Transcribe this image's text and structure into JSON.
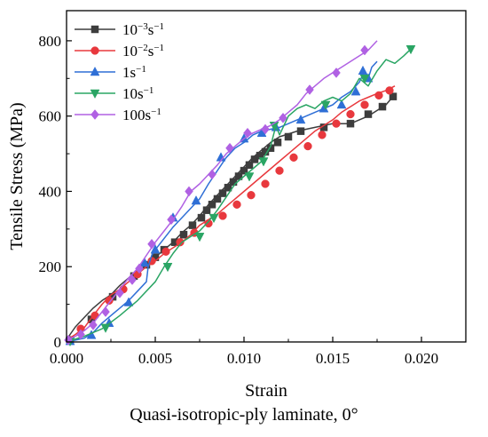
{
  "chart_data": {
    "type": "line",
    "xlabel": "Strain",
    "ylabel": "Tensile Stress (MPa)",
    "xlim": [
      0,
      0.0225
    ],
    "ylim": [
      0,
      880
    ],
    "xticks": [
      "0.000",
      "0.005",
      "0.010",
      "0.015",
      "0.020"
    ],
    "xtick_values": [
      0,
      0.005,
      0.01,
      0.015,
      0.02
    ],
    "yticks": [
      "0",
      "200",
      "400",
      "600",
      "800"
    ],
    "ytick_values": [
      0,
      200,
      400,
      600,
      800
    ],
    "grid": false,
    "legend_position": "top-left",
    "series": [
      {
        "name_base": "10",
        "name_sup": "−3",
        "name_unit": "s",
        "name_unit_sup": "−1",
        "color": "#3d3d3d",
        "marker": "square",
        "x": [
          0.0,
          0.0002,
          0.0005,
          0.001,
          0.0015,
          0.002,
          0.0025,
          0.003,
          0.0035,
          0.004,
          0.0045,
          0.005,
          0.0055,
          0.006,
          0.0065,
          0.007,
          0.0075,
          0.008,
          0.0085,
          0.009,
          0.0095,
          0.01,
          0.0105,
          0.011,
          0.0115,
          0.012,
          0.013,
          0.014,
          0.015,
          0.016,
          0.017,
          0.018,
          0.0184
        ],
        "y": [
          5,
          20,
          40,
          65,
          90,
          110,
          125,
          150,
          170,
          185,
          205,
          225,
          245,
          265,
          290,
          310,
          335,
          365,
          390,
          415,
          440,
          465,
          490,
          510,
          530,
          545,
          560,
          570,
          580,
          580,
          600,
          630,
          652
        ],
        "marker_x": [
          0.0002,
          0.0014,
          0.0026,
          0.0038,
          0.0045,
          0.005,
          0.0055,
          0.0061,
          0.0066,
          0.0071,
          0.0076,
          0.0079,
          0.0082,
          0.0085,
          0.0088,
          0.0091,
          0.0094,
          0.0097,
          0.01,
          0.0103,
          0.0106,
          0.0109,
          0.0112,
          0.0115,
          0.0119,
          0.0125,
          0.0132,
          0.0145,
          0.016,
          0.017,
          0.0178,
          0.0184
        ],
        "marker_y": [
          5,
          60,
          120,
          175,
          205,
          225,
          245,
          265,
          285,
          310,
          330,
          350,
          365,
          380,
          395,
          410,
          425,
          440,
          455,
          470,
          485,
          495,
          505,
          515,
          530,
          545,
          560,
          570,
          580,
          605,
          625,
          652
        ]
      },
      {
        "name_base": "10",
        "name_sup": "−2",
        "name_unit": "s",
        "name_unit_sup": "−1",
        "color": "#e8383d",
        "marker": "circle",
        "x": [
          0.0,
          0.0005,
          0.001,
          0.0015,
          0.002,
          0.0025,
          0.003,
          0.0035,
          0.004,
          0.0045,
          0.005,
          0.0055,
          0.006,
          0.0065,
          0.007,
          0.0075,
          0.008,
          0.0085,
          0.009,
          0.0095,
          0.01,
          0.0105,
          0.011,
          0.0115,
          0.012,
          0.0125,
          0.013,
          0.0135,
          0.014,
          0.0145,
          0.015,
          0.0155,
          0.016,
          0.0165,
          0.017,
          0.0175,
          0.018,
          0.0185
        ],
        "y": [
          5,
          20,
          38,
          70,
          100,
          125,
          140,
          160,
          180,
          200,
          215,
          235,
          250,
          265,
          285,
          310,
          325,
          340,
          360,
          380,
          400,
          420,
          440,
          460,
          480,
          500,
          520,
          540,
          560,
          575,
          590,
          610,
          625,
          640,
          650,
          660,
          668,
          680
        ],
        "marker_x": [
          0.0002,
          0.0008,
          0.0016,
          0.0024,
          0.0032,
          0.004,
          0.0048,
          0.0056,
          0.0064,
          0.0072,
          0.008,
          0.0088,
          0.0096,
          0.0104,
          0.0112,
          0.012,
          0.0128,
          0.0136,
          0.0144,
          0.0152,
          0.016,
          0.0168,
          0.0176,
          0.0182
        ],
        "marker_y": [
          5,
          35,
          70,
          110,
          140,
          180,
          215,
          240,
          265,
          290,
          315,
          335,
          365,
          390,
          420,
          455,
          490,
          520,
          550,
          580,
          605,
          630,
          655,
          668
        ]
      },
      {
        "name_base": "1",
        "name_sup": "",
        "name_unit": "s",
        "name_unit_sup": "−1",
        "color": "#2f6fd6",
        "marker": "triangle-up",
        "x": [
          0.0,
          0.0005,
          0.001,
          0.0015,
          0.002,
          0.0025,
          0.003,
          0.0035,
          0.004,
          0.0045,
          0.0046,
          0.0048,
          0.005,
          0.0055,
          0.006,
          0.0065,
          0.007,
          0.0075,
          0.008,
          0.0085,
          0.009,
          0.0095,
          0.01,
          0.0105,
          0.011,
          0.0115,
          0.012,
          0.0125,
          0.013,
          0.0135,
          0.014,
          0.0145,
          0.015,
          0.0155,
          0.016,
          0.0165,
          0.0168,
          0.017,
          0.0172,
          0.0175
        ],
        "y": [
          0,
          5,
          10,
          25,
          50,
          70,
          90,
          110,
          135,
          160,
          200,
          230,
          245,
          275,
          305,
          330,
          355,
          380,
          420,
          455,
          490,
          515,
          530,
          550,
          560,
          565,
          570,
          580,
          590,
          600,
          610,
          620,
          630,
          650,
          665,
          690,
          720,
          700,
          730,
          745
        ],
        "marker_x": [
          0.0002,
          0.0014,
          0.0024,
          0.0035,
          0.0044,
          0.005,
          0.006,
          0.0073,
          0.0087,
          0.01,
          0.011,
          0.0118,
          0.0132,
          0.0145,
          0.0155,
          0.0163,
          0.0167,
          0.017
        ],
        "marker_y": [
          2,
          18,
          50,
          105,
          210,
          245,
          330,
          375,
          490,
          540,
          555,
          570,
          590,
          620,
          630,
          665,
          720,
          700
        ]
      },
      {
        "name_base": "10",
        "name_sup": "",
        "name_unit": "s",
        "name_unit_sup": "−1",
        "color": "#2aa564",
        "marker": "triangle-down",
        "x": [
          0.0,
          0.001,
          0.002,
          0.003,
          0.004,
          0.005,
          0.0055,
          0.006,
          0.0065,
          0.007,
          0.0075,
          0.008,
          0.0085,
          0.009,
          0.0095,
          0.01,
          0.0105,
          0.011,
          0.0115,
          0.0118,
          0.012,
          0.0125,
          0.013,
          0.0135,
          0.014,
          0.0145,
          0.015,
          0.0155,
          0.016,
          0.0165,
          0.017,
          0.0175,
          0.018,
          0.0185,
          0.019,
          0.0194
        ],
        "y": [
          0,
          15,
          35,
          70,
          110,
          160,
          200,
          235,
          265,
          280,
          295,
          320,
          350,
          385,
          420,
          440,
          460,
          480,
          520,
          575,
          550,
          600,
          620,
          630,
          620,
          640,
          650,
          640,
          660,
          700,
          680,
          720,
          750,
          740,
          760,
          778
        ],
        "marker_x": [
          0.0002,
          0.0022,
          0.0057,
          0.0075,
          0.0083,
          0.0103,
          0.0111,
          0.0117,
          0.0146,
          0.0168,
          0.0194
        ],
        "marker_y": [
          2,
          38,
          200,
          280,
          330,
          440,
          480,
          575,
          630,
          700,
          778
        ]
      },
      {
        "name_base": "100",
        "name_sup": "",
        "name_unit": "s",
        "name_unit_sup": "−1",
        "color": "#b061e3",
        "marker": "diamond",
        "x": [
          0.0,
          0.0005,
          0.001,
          0.0015,
          0.002,
          0.0025,
          0.003,
          0.0035,
          0.004,
          0.0045,
          0.005,
          0.0055,
          0.006,
          0.0065,
          0.007,
          0.0075,
          0.008,
          0.0085,
          0.009,
          0.0095,
          0.01,
          0.0105,
          0.011,
          0.0115,
          0.012,
          0.0125,
          0.013,
          0.0135,
          0.014,
          0.0145,
          0.015,
          0.0155,
          0.016,
          0.0165,
          0.017,
          0.0175
        ],
        "y": [
          5,
          15,
          30,
          50,
          80,
          110,
          140,
          170,
          195,
          230,
          265,
          295,
          325,
          360,
          400,
          420,
          445,
          470,
          500,
          520,
          540,
          555,
          565,
          575,
          590,
          610,
          630,
          660,
          680,
          700,
          715,
          730,
          745,
          760,
          775,
          800
        ],
        "marker_x": [
          0.0001,
          0.0008,
          0.0015,
          0.0022,
          0.003,
          0.0037,
          0.0041,
          0.0048,
          0.0059,
          0.0069,
          0.0082,
          0.0092,
          0.0102,
          0.0112,
          0.0122,
          0.0137,
          0.0152,
          0.0168
        ],
        "marker_y": [
          5,
          20,
          45,
          80,
          130,
          165,
          195,
          260,
          325,
          400,
          445,
          515,
          555,
          565,
          595,
          670,
          715,
          775
        ]
      }
    ]
  },
  "caption": "Quasi-isotropic-ply laminate, 0°"
}
